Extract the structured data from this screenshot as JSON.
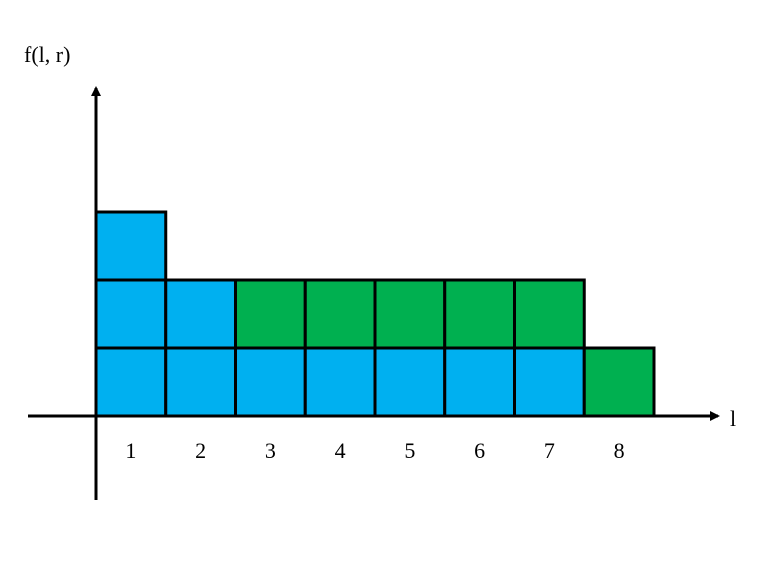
{
  "y_axis_label": "f(l, r)",
  "x_axis_label": "l",
  "x_tick_labels": [
    "1",
    "2",
    "3",
    "4",
    "5",
    "6",
    "7",
    "8"
  ],
  "colors": {
    "blue": "#00b0f0",
    "green": "#00b050",
    "stroke": "#000000"
  },
  "columns": [
    {
      "l": "1",
      "cells": [
        "blue",
        "blue",
        "blue"
      ]
    },
    {
      "l": "2",
      "cells": [
        "blue",
        "blue"
      ]
    },
    {
      "l": "3",
      "cells": [
        "blue",
        "green"
      ]
    },
    {
      "l": "4",
      "cells": [
        "blue",
        "green"
      ]
    },
    {
      "l": "5",
      "cells": [
        "blue",
        "green"
      ]
    },
    {
      "l": "6",
      "cells": [
        "blue",
        "green"
      ]
    },
    {
      "l": "7",
      "cells": [
        "blue",
        "green"
      ]
    },
    {
      "l": "8",
      "cells": [
        "green"
      ]
    }
  ]
}
